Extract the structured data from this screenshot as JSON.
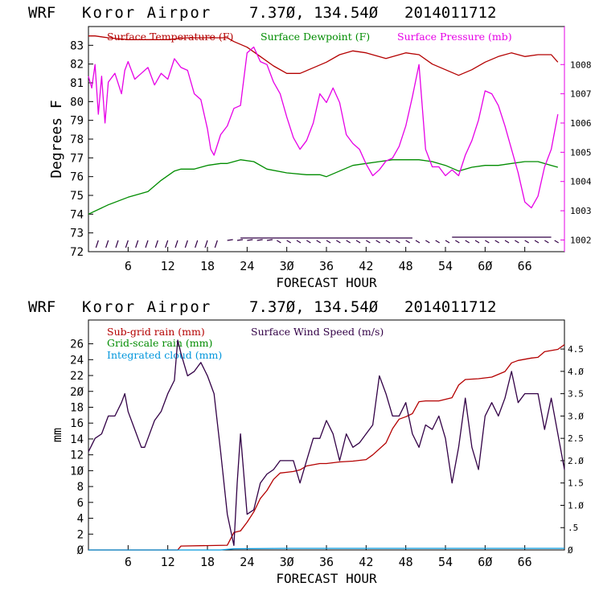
{
  "chart_data": [
    {
      "type": "line",
      "header": {
        "model": "WRF",
        "station": "Koror Airpor",
        "coords": "7.37Ø, 134.54Ø",
        "init": "2014011712"
      },
      "legend": [
        "Surface Temperature (F)",
        "Surface Dewpoint (F)",
        "Surface Pressure (mb)"
      ],
      "ylabel": "Degrees F",
      "xlabel": "FORECAST HOUR",
      "xlim": [
        0,
        72
      ],
      "ylim": [
        72,
        84
      ],
      "x_ticks": [
        "6",
        "12",
        "18",
        "24",
        "3Ø",
        "36",
        "42",
        "48",
        "54",
        "6Ø",
        "66"
      ],
      "y_ticks": [
        "72",
        "73",
        "74",
        "75",
        "76",
        "77",
        "78",
        "79",
        "80",
        "81",
        "82",
        "83"
      ],
      "y2lim": [
        1001.6,
        1009.3
      ],
      "y2_ticks": [
        "1002",
        "1003",
        "1004",
        "1005",
        "1006",
        "1007",
        "1008"
      ],
      "series": [
        {
          "name": "Surface Temperature (F)",
          "color": "#b40000",
          "x": [
            0,
            1,
            3,
            6,
            9,
            12,
            15,
            18,
            21,
            22,
            24,
            26,
            28,
            30,
            32,
            34,
            36,
            38,
            40,
            42,
            45,
            48,
            50,
            52,
            54,
            56,
            58,
            60,
            62,
            64,
            66,
            68,
            70,
            71
          ],
          "values": [
            83.5,
            83.5,
            83.4,
            83.3,
            83.3,
            83.3,
            83.4,
            83.4,
            83.4,
            83.2,
            82.9,
            82.4,
            81.9,
            81.5,
            81.5,
            81.8,
            82.1,
            82.5,
            82.7,
            82.6,
            82.3,
            82.6,
            82.5,
            82.0,
            81.7,
            81.4,
            81.7,
            82.1,
            82.4,
            82.6,
            82.4,
            82.5,
            82.5,
            82.1
          ]
        },
        {
          "name": "Surface Dewpoint (F)",
          "color": "#008c00",
          "x": [
            0,
            3,
            6,
            9,
            11,
            13,
            14,
            16,
            18,
            20,
            21,
            23,
            25,
            27,
            30,
            33,
            35,
            36,
            38,
            40,
            42,
            44,
            46,
            48,
            50,
            52,
            54,
            56,
            58,
            60,
            62,
            64,
            66,
            68,
            70,
            71
          ],
          "values": [
            74.0,
            74.5,
            74.9,
            75.2,
            75.8,
            76.3,
            76.4,
            76.4,
            76.6,
            76.7,
            76.7,
            76.9,
            76.8,
            76.4,
            76.2,
            76.1,
            76.1,
            76.0,
            76.3,
            76.6,
            76.7,
            76.8,
            76.9,
            76.9,
            76.9,
            76.8,
            76.6,
            76.3,
            76.5,
            76.6,
            76.6,
            76.7,
            76.8,
            76.8,
            76.6,
            76.5
          ]
        },
        {
          "name": "Surface Pressure (mb)",
          "color": "#e600e6",
          "axis": "right",
          "x": [
            0,
            0.5,
            1,
            1.5,
            2,
            2.5,
            3,
            4,
            5,
            5.5,
            6,
            7,
            8,
            9,
            10,
            11,
            12,
            13,
            14,
            15,
            16,
            17,
            18,
            18.5,
            19,
            20,
            21,
            22,
            23,
            24,
            25,
            26,
            27,
            28,
            29,
            30,
            31,
            32,
            33,
            34,
            35,
            36,
            37,
            38,
            39,
            40,
            41,
            42,
            43,
            44,
            45,
            46,
            47,
            48,
            49,
            50,
            51,
            52,
            53,
            54,
            55,
            56,
            57,
            58,
            59,
            60,
            61,
            62,
            63,
            64,
            65,
            66,
            67,
            68,
            69,
            70,
            71
          ],
          "values": [
            1007.6,
            1007.2,
            1008.0,
            1006.3,
            1007.6,
            1006.0,
            1007.4,
            1007.7,
            1007.0,
            1007.8,
            1008.1,
            1007.5,
            1007.7,
            1007.9,
            1007.3,
            1007.7,
            1007.5,
            1008.2,
            1007.9,
            1007.8,
            1007.0,
            1006.8,
            1005.8,
            1005.1,
            1004.9,
            1005.6,
            1005.9,
            1006.5,
            1006.6,
            1008.4,
            1008.6,
            1008.1,
            1008.0,
            1007.4,
            1007.0,
            1006.2,
            1005.5,
            1005.1,
            1005.4,
            1006.0,
            1007.0,
            1006.7,
            1007.2,
            1006.7,
            1005.6,
            1005.3,
            1005.1,
            1004.6,
            1004.2,
            1004.4,
            1004.7,
            1004.8,
            1005.2,
            1005.9,
            1006.9,
            1008.0,
            1005.1,
            1004.5,
            1004.5,
            1004.2,
            1004.4,
            1004.2,
            1004.9,
            1005.4,
            1006.1,
            1007.1,
            1007.0,
            1006.6,
            1005.9,
            1005.1,
            1004.3,
            1003.3,
            1003.1,
            1003.5,
            1004.5,
            1005.1,
            1006.3
          ]
        }
      ]
    },
    {
      "type": "line",
      "header": {
        "model": "WRF",
        "station": "Koror Airpor",
        "coords": "7.37Ø, 134.54Ø",
        "init": "2014011712"
      },
      "legend": [
        "Sub-grid rain (mm)",
        "Grid-scale rain (mm)",
        "Integrated cloud (mm)",
        "Surface Wind Speed (m/s)"
      ],
      "ylabel": "mm",
      "xlabel": "FORECAST HOUR",
      "xlim": [
        0,
        72
      ],
      "ylim": [
        0,
        29
      ],
      "x_ticks": [
        "6",
        "12",
        "18",
        "24",
        "3Ø",
        "36",
        "42",
        "48",
        "54",
        "6Ø",
        "66"
      ],
      "y_ticks": [
        "Ø",
        "2",
        "4",
        "6",
        "8",
        "1Ø",
        "12",
        "14",
        "16",
        "18",
        "2Ø",
        "22",
        "24",
        "26"
      ],
      "y2lim": [
        0,
        5.15
      ],
      "y2_ticks": [
        "Ø",
        ".5",
        "1.Ø",
        "1.5",
        "2.Ø",
        "2.5",
        "3.Ø",
        "3.5",
        "4.Ø",
        "4.5"
      ],
      "series": [
        {
          "name": "Sub-grid rain (mm)",
          "color": "#b40000",
          "x": [
            0,
            13.5,
            14,
            21,
            22,
            23,
            24,
            25,
            26,
            27,
            28,
            29,
            30,
            31,
            32,
            33,
            35,
            36,
            38,
            40,
            42,
            43,
            45,
            46,
            47,
            48,
            49,
            50,
            51,
            53,
            55,
            56,
            57,
            59,
            61,
            63,
            64,
            65,
            67,
            68,
            69,
            71,
            72
          ],
          "values": [
            0,
            0,
            0.5,
            0.6,
            2.2,
            2.4,
            3.5,
            4.8,
            6.5,
            7.5,
            8.9,
            9.7,
            9.8,
            9.9,
            10.1,
            10.6,
            10.9,
            10.9,
            11.1,
            11.2,
            11.4,
            12.0,
            13.5,
            15.3,
            16.5,
            16.8,
            17.2,
            18.7,
            18.8,
            18.8,
            19.2,
            20.8,
            21.5,
            21.6,
            21.8,
            22.5,
            23.6,
            23.9,
            24.2,
            24.3,
            25.0,
            25.3,
            25.9
          ]
        },
        {
          "name": "Integrated cloud (mm)",
          "color": "#0096dc",
          "x": [
            0,
            20,
            22,
            30,
            40,
            50,
            60,
            70,
            72
          ],
          "values": [
            0,
            0,
            0.15,
            0.2,
            0.2,
            0.2,
            0.2,
            0.2,
            0.2
          ]
        },
        {
          "name": "Surface Wind Speed (m/s)",
          "color": "#320046",
          "axis": "right",
          "x": [
            0,
            1,
            2,
            3,
            4,
            5,
            5.5,
            6,
            7,
            8,
            8.5,
            9,
            10,
            11,
            12,
            13,
            13.5,
            14,
            15,
            16,
            17,
            18,
            19,
            20,
            21,
            22,
            22.5,
            23,
            24,
            25,
            26,
            27,
            28,
            29,
            30,
            31,
            32,
            33,
            34,
            35,
            36,
            37,
            38,
            39,
            40,
            41,
            42,
            43,
            44,
            45,
            46,
            47,
            48,
            49,
            50,
            51,
            52,
            53,
            54,
            55,
            56,
            57,
            58,
            59,
            60,
            61,
            62,
            63,
            64,
            65,
            66,
            67,
            68,
            69,
            70,
            71,
            72
          ],
          "values": [
            2.2,
            2.5,
            2.6,
            3.0,
            3.0,
            3.3,
            3.5,
            3.1,
            2.7,
            2.3,
            2.3,
            2.5,
            2.9,
            3.1,
            3.5,
            3.8,
            4.7,
            4.4,
            3.9,
            4.0,
            4.2,
            3.9,
            3.5,
            2.2,
            0.8,
            0.1,
            1.5,
            2.6,
            0.8,
            0.9,
            1.5,
            1.7,
            1.8,
            2.0,
            2.0,
            2.0,
            1.5,
            2.0,
            2.5,
            2.5,
            2.9,
            2.6,
            2.0,
            2.6,
            2.3,
            2.4,
            2.6,
            2.8,
            3.9,
            3.5,
            3.0,
            3.0,
            3.3,
            2.6,
            2.3,
            2.8,
            2.7,
            3.0,
            2.5,
            1.5,
            2.3,
            3.4,
            2.3,
            1.8,
            3.0,
            3.3,
            3.0,
            3.4,
            4.0,
            3.3,
            3.5,
            3.5,
            3.5,
            2.7,
            3.4,
            2.6,
            1.8
          ]
        }
      ]
    }
  ]
}
